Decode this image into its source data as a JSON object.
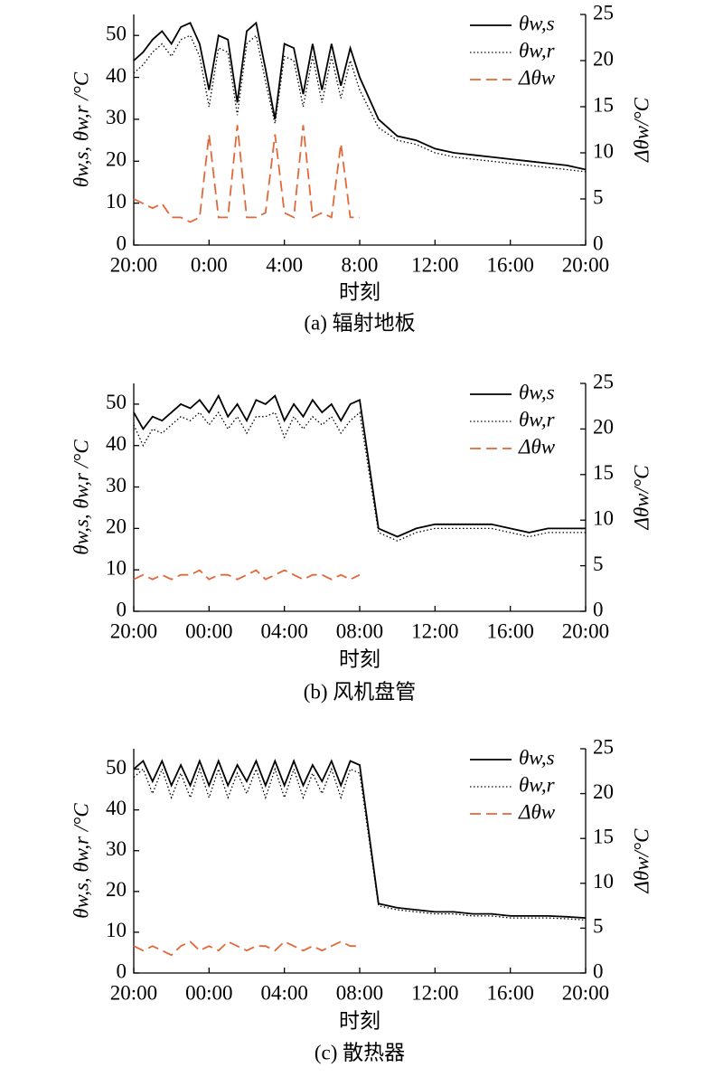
{
  "chart_data": [
    {
      "type": "line",
      "caption": "(a) 辐射地板",
      "xlabel": "时刻",
      "ylabel": "θw,s, θw,r /°C",
      "y2label": "Δθw/°C",
      "xlim": [
        0,
        24
      ],
      "xticks": [
        {
          "value": 0,
          "label": "20:00"
        },
        {
          "value": 4,
          "label": "0:00"
        },
        {
          "value": 8,
          "label": "4:00"
        },
        {
          "value": 12,
          "label": "8:00"
        },
        {
          "value": 16,
          "label": "12:00"
        },
        {
          "value": 20,
          "label": "16:00"
        },
        {
          "value": 24,
          "label": "20:00"
        }
      ],
      "ylim": [
        0,
        55
      ],
      "yticks": [
        0,
        10,
        20,
        30,
        40,
        50
      ],
      "y2lim": [
        0,
        25
      ],
      "y2ticks": [
        0,
        5,
        10,
        15,
        20,
        25
      ],
      "x": [
        0,
        0.5,
        1,
        1.5,
        2,
        2.5,
        3,
        3.5,
        4,
        4.5,
        5,
        5.5,
        6,
        6.5,
        7,
        7.5,
        8,
        8.5,
        9,
        9.5,
        10,
        10.5,
        11,
        11.5,
        12,
        13,
        14,
        15,
        16,
        17,
        18,
        19,
        20,
        21,
        22,
        23,
        24
      ],
      "series": [
        {
          "name": "θw,s",
          "color": "#000000",
          "dash": "solid",
          "values": [
            44,
            46,
            49,
            51,
            48,
            52,
            53,
            48,
            37,
            50,
            49,
            34,
            51,
            53,
            42,
            30,
            48,
            47,
            36,
            48,
            37,
            48,
            38,
            47,
            40,
            30,
            26,
            25,
            23,
            22,
            21.5,
            21,
            20.5,
            20,
            19.5,
            19,
            18
          ]
        },
        {
          "name": "θw,r",
          "color": "#000000",
          "dash": "dotted",
          "values": [
            41,
            43,
            46,
            48,
            45,
            49,
            50,
            45,
            33,
            47,
            46,
            31,
            48,
            50,
            39,
            29,
            45,
            44,
            33,
            45,
            34,
            45,
            35,
            44,
            37,
            28,
            25,
            24,
            22,
            21,
            20.5,
            20,
            19.5,
            19,
            18.5,
            18,
            17.5
          ]
        },
        {
          "name": "Δθw",
          "color": "#e0693a",
          "dash": "dashed",
          "axis": "y2",
          "values": [
            5,
            4.5,
            4,
            4.5,
            3,
            3,
            2.5,
            3,
            12,
            3,
            3,
            13,
            3,
            3,
            3.5,
            12,
            3.5,
            3,
            13,
            3,
            3.5,
            3,
            11,
            3,
            3,
            null,
            null,
            null,
            null,
            null,
            null,
            null,
            null,
            null,
            null,
            null,
            null
          ]
        }
      ]
    },
    {
      "type": "line",
      "caption": "(b) 风机盘管",
      "xlabel": "时刻",
      "ylabel": "θw,s, θw,r /°C",
      "y2label": "Δθw/°C",
      "xlim": [
        0,
        24
      ],
      "xticks": [
        {
          "value": 0,
          "label": "20:00"
        },
        {
          "value": 4,
          "label": "00:00"
        },
        {
          "value": 8,
          "label": "04:00"
        },
        {
          "value": 12,
          "label": "08:00"
        },
        {
          "value": 16,
          "label": "12:00"
        },
        {
          "value": 20,
          "label": "16:00"
        },
        {
          "value": 24,
          "label": "20:00"
        }
      ],
      "ylim": [
        0,
        55
      ],
      "yticks": [
        0,
        10,
        20,
        30,
        40,
        50
      ],
      "y2lim": [
        0,
        25
      ],
      "y2ticks": [
        0,
        5,
        10,
        15,
        20,
        25
      ],
      "x": [
        0,
        0.5,
        1,
        1.5,
        2,
        2.5,
        3,
        3.5,
        4,
        4.5,
        5,
        5.5,
        6,
        6.5,
        7,
        7.5,
        8,
        8.5,
        9,
        9.5,
        10,
        10.5,
        11,
        11.5,
        12,
        13,
        14,
        15,
        16,
        17,
        18,
        19,
        20,
        21,
        22,
        23,
        24
      ],
      "series": [
        {
          "name": "θw,s",
          "color": "#000000",
          "dash": "solid",
          "values": [
            48,
            44,
            47,
            46,
            48,
            50,
            49,
            51,
            48,
            52,
            47,
            50,
            46,
            51,
            50,
            52,
            46,
            50,
            47,
            51,
            48,
            50,
            46,
            50,
            51,
            20,
            18,
            20,
            21,
            21,
            21,
            21,
            20,
            19,
            20,
            20,
            20
          ]
        },
        {
          "name": "θw,r",
          "color": "#000000",
          "dash": "dotted",
          "values": [
            45,
            40,
            44,
            43,
            45,
            47,
            46,
            48,
            45,
            48,
            44,
            47,
            43,
            47,
            47,
            48,
            42,
            47,
            44,
            47,
            45,
            47,
            43,
            46,
            48,
            19,
            17,
            19,
            20,
            20,
            20,
            20,
            19,
            18,
            19,
            19,
            19
          ]
        },
        {
          "name": "Δθw",
          "color": "#e0693a",
          "dash": "dashed",
          "axis": "y2",
          "values": [
            3.5,
            4,
            3.5,
            4,
            3.5,
            4,
            4,
            4.5,
            3.5,
            4,
            4,
            3.5,
            4,
            4.5,
            3.5,
            4,
            4.5,
            4,
            3.5,
            4,
            4,
            3.5,
            4,
            3.5,
            4,
            null,
            null,
            null,
            null,
            null,
            null,
            null,
            null,
            null,
            null,
            null,
            null
          ]
        }
      ]
    },
    {
      "type": "line",
      "caption": "(c) 散热器",
      "xlabel": "时刻",
      "ylabel": "θw,s, θw,r /°C",
      "y2label": "Δθw/°C",
      "xlim": [
        0,
        24
      ],
      "xticks": [
        {
          "value": 0,
          "label": "20:00"
        },
        {
          "value": 4,
          "label": "00:00"
        },
        {
          "value": 8,
          "label": "04:00"
        },
        {
          "value": 12,
          "label": "08:00"
        },
        {
          "value": 16,
          "label": "12:00"
        },
        {
          "value": 20,
          "label": "16:00"
        },
        {
          "value": 24,
          "label": "20:00"
        }
      ],
      "ylim": [
        0,
        55
      ],
      "yticks": [
        0,
        10,
        20,
        30,
        40,
        50
      ],
      "y2lim": [
        0,
        25
      ],
      "y2ticks": [
        0,
        5,
        10,
        15,
        20,
        25
      ],
      "x": [
        0,
        0.5,
        1,
        1.5,
        2,
        2.5,
        3,
        3.5,
        4,
        4.5,
        5,
        5.5,
        6,
        6.5,
        7,
        7.5,
        8,
        8.5,
        9,
        9.5,
        10,
        10.5,
        11,
        11.5,
        12,
        13,
        14,
        15,
        16,
        17,
        18,
        19,
        20,
        21,
        22,
        23,
        24
      ],
      "series": [
        {
          "name": "θw,s",
          "color": "#000000",
          "dash": "solid",
          "values": [
            50,
            52,
            47,
            52,
            46,
            51,
            46,
            52,
            46,
            52,
            46,
            51,
            47,
            52,
            46,
            52,
            46,
            52,
            46,
            51,
            47,
            52,
            46,
            52,
            51,
            17,
            16,
            15.5,
            15,
            15,
            14.5,
            14.5,
            14,
            14,
            14,
            13.8,
            13.5
          ]
        },
        {
          "name": "θw,r",
          "color": "#000000",
          "dash": "dotted",
          "values": [
            48,
            50,
            44,
            50,
            43,
            49,
            43,
            50,
            43,
            50,
            43,
            49,
            44,
            50,
            43,
            50,
            43,
            50,
            43,
            49,
            44,
            50,
            43,
            50,
            49,
            16.5,
            15.5,
            15,
            14.5,
            14.5,
            14,
            14,
            13.5,
            13.5,
            13.5,
            13.3,
            13
          ]
        },
        {
          "name": "Δθw",
          "color": "#e0693a",
          "dash": "dashed",
          "axis": "y2",
          "values": [
            3,
            2.5,
            3,
            2.5,
            2,
            3,
            3.5,
            2.5,
            3,
            2.5,
            3.5,
            3,
            2.5,
            3,
            3,
            2.5,
            3.5,
            3,
            2.5,
            3,
            2.5,
            3,
            3.5,
            3,
            3,
            null,
            null,
            null,
            null,
            null,
            null,
            null,
            null,
            null,
            null,
            null,
            null
          ]
        }
      ]
    }
  ]
}
